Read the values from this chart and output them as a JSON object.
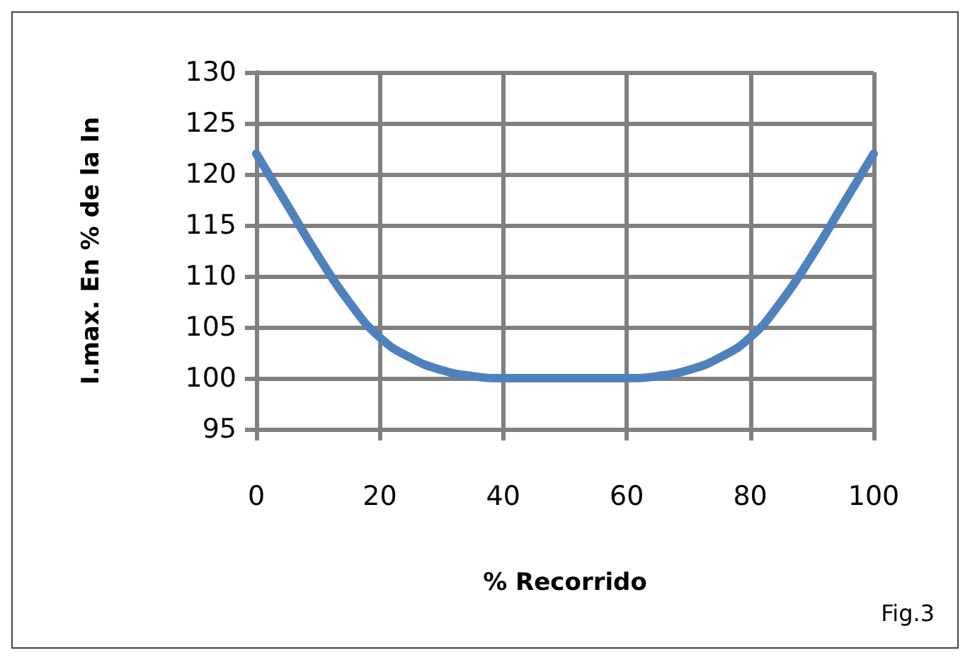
{
  "chart_data": {
    "type": "line",
    "xlabel": "% Recorrido",
    "ylabel": "I.max. En % de la In",
    "annotations": [
      "Fig.3"
    ],
    "x": [
      0,
      5,
      10,
      15,
      20,
      25,
      30,
      35,
      40,
      50,
      60,
      65,
      70,
      75,
      80,
      85,
      90,
      95,
      100
    ],
    "series": [
      {
        "color": "#4f81bd",
        "values": [
          122,
          117,
          112,
          107.5,
          104,
          102,
          100.8,
          100.2,
          100,
          100,
          100,
          100.2,
          100.8,
          102,
          104,
          107.5,
          112,
          117,
          122
        ]
      }
    ],
    "xlim": [
      0,
      100
    ],
    "xticks": [
      0,
      20,
      40,
      60,
      80,
      100
    ],
    "ylim": [
      95,
      130
    ],
    "yticks": [
      95,
      100,
      105,
      110,
      115,
      120,
      125,
      130
    ],
    "grid": true,
    "marker": "none",
    "line_style": "solid"
  }
}
